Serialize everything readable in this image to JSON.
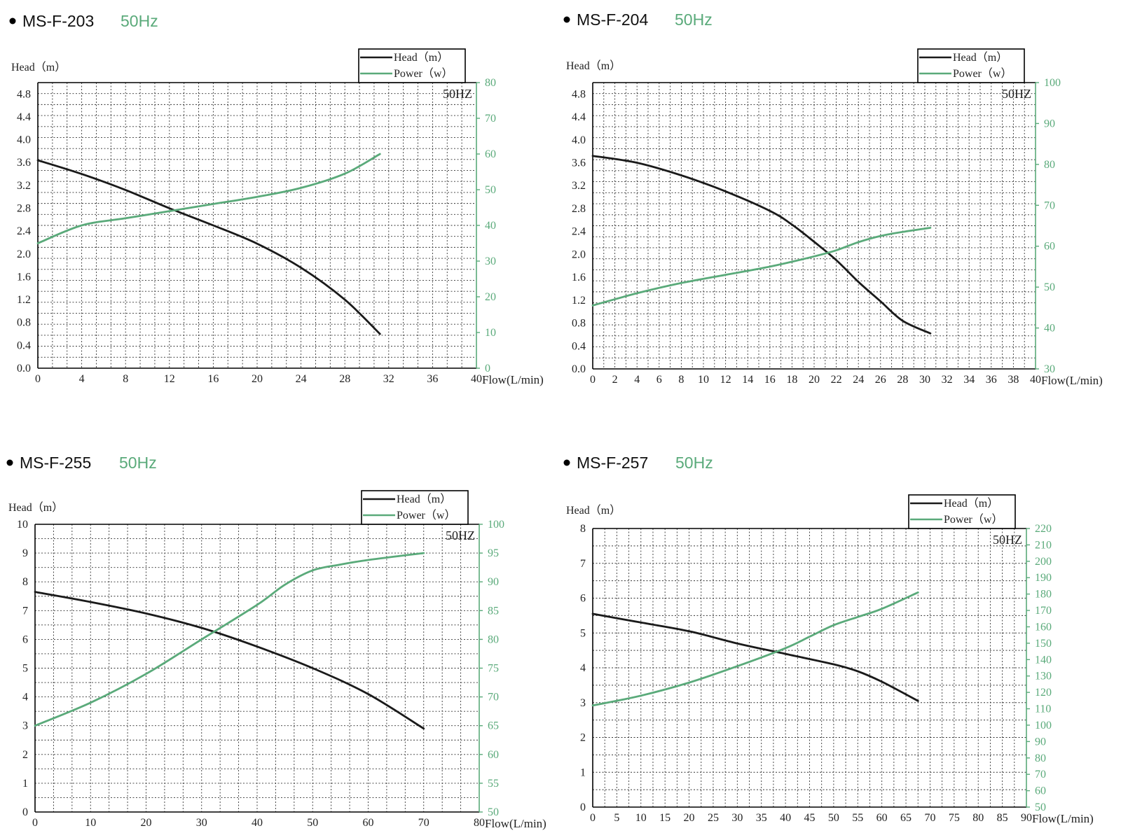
{
  "colors": {
    "head": "#1a1a1a",
    "power": "#5aaa7a",
    "hz_title": "#5aaa7a",
    "grid": "#333333",
    "text": "#222222"
  },
  "chart_data": [
    {
      "type": "line",
      "model": "MS-F-203",
      "hz": "50Hz",
      "inner_label": "50HZ",
      "ylabel": "Head（m）",
      "xlabel": "Flow(L/min)",
      "legend": [
        "Head（m）",
        "Power（w）"
      ],
      "legend_position": "top-right",
      "xlim": [
        0,
        40
      ],
      "x_ticks": [
        0,
        4,
        8,
        12,
        16,
        20,
        24,
        28,
        32,
        36,
        40
      ],
      "ylim": [
        0,
        5
      ],
      "y_ticks": [
        "0.0",
        "0.4",
        "0.8",
        "1.2",
        "1.6",
        "2.0",
        "2.4",
        "2.8",
        "3.2",
        "3.6",
        "4.0",
        "4.4",
        "4.8"
      ],
      "y2lim": [
        0,
        80
      ],
      "y2_ticks": [
        0,
        10,
        20,
        30,
        40,
        50,
        60,
        70,
        80
      ],
      "series": [
        {
          "name": "Head（m）",
          "axis": "left",
          "points": [
            [
              0,
              3.64
            ],
            [
              4,
              3.4
            ],
            [
              8,
              3.12
            ],
            [
              12,
              2.8
            ],
            [
              16,
              2.5
            ],
            [
              20,
              2.18
            ],
            [
              24,
              1.76
            ],
            [
              28,
              1.2
            ],
            [
              31.2,
              0.6
            ]
          ]
        },
        {
          "name": "Power（w）",
          "axis": "right",
          "points": [
            [
              0,
              35
            ],
            [
              4,
              40
            ],
            [
              8,
              42
            ],
            [
              12,
              44
            ],
            [
              16,
              46
            ],
            [
              20,
              48
            ],
            [
              24,
              50.5
            ],
            [
              28,
              54.5
            ],
            [
              31.2,
              60
            ]
          ]
        }
      ]
    },
    {
      "type": "line",
      "model": "MS-F-204",
      "hz": "50Hz",
      "inner_label": "50HZ",
      "ylabel": "Head（m）",
      "xlabel": "Flow(L/min)",
      "legend": [
        "Head（m）",
        "Power（w）"
      ],
      "legend_position": "top-right",
      "xlim": [
        0,
        40
      ],
      "x_ticks": [
        0,
        2,
        4,
        6,
        8,
        10,
        12,
        14,
        16,
        18,
        20,
        22,
        24,
        26,
        28,
        30,
        32,
        34,
        36,
        38,
        40
      ],
      "ylim": [
        0,
        5
      ],
      "y_ticks": [
        "0.0",
        "0.4",
        "0.8",
        "1.2",
        "1.6",
        "2.0",
        "2.4",
        "2.8",
        "3.2",
        "3.6",
        "4.0",
        "4.4",
        "4.8"
      ],
      "y2lim": [
        30,
        100
      ],
      "y2_ticks": [
        30,
        40,
        50,
        60,
        70,
        80,
        90,
        100
      ],
      "series": [
        {
          "name": "Head（m）",
          "axis": "left",
          "points": [
            [
              0,
              3.72
            ],
            [
              4,
              3.6
            ],
            [
              8,
              3.38
            ],
            [
              12,
              3.1
            ],
            [
              16,
              2.76
            ],
            [
              18,
              2.52
            ],
            [
              20,
              2.22
            ],
            [
              22,
              1.9
            ],
            [
              24,
              1.52
            ],
            [
              26,
              1.18
            ],
            [
              28,
              0.84
            ],
            [
              30.5,
              0.62
            ]
          ]
        },
        {
          "name": "Power（w）",
          "axis": "right",
          "points": [
            [
              0,
              45.5
            ],
            [
              4,
              48.5
            ],
            [
              8,
              51
            ],
            [
              12,
              53
            ],
            [
              16,
              55
            ],
            [
              20,
              57.5
            ],
            [
              22,
              59
            ],
            [
              24,
              61
            ],
            [
              26,
              62.5
            ],
            [
              28,
              63.5
            ],
            [
              30.5,
              64.5
            ]
          ]
        }
      ]
    },
    {
      "type": "line",
      "model": "MS-F-255",
      "hz": "50Hz",
      "inner_label": "50HZ",
      "ylabel": "Head（m）",
      "xlabel": "Flow(L/min)",
      "legend": [
        "Head（m）",
        "Power（w）"
      ],
      "legend_position": "top-right",
      "xlim": [
        0,
        80
      ],
      "x_ticks": [
        0,
        10,
        20,
        30,
        40,
        50,
        60,
        70,
        80
      ],
      "ylim": [
        0,
        10
      ],
      "y_ticks": [
        "0",
        "1",
        "2",
        "3",
        "4",
        "5",
        "6",
        "7",
        "8",
        "9",
        "10"
      ],
      "y2lim": [
        50,
        100
      ],
      "y2_ticks": [
        50,
        55,
        60,
        65,
        70,
        75,
        80,
        85,
        90,
        95,
        100
      ],
      "series": [
        {
          "name": "Head（m）",
          "axis": "left",
          "points": [
            [
              0,
              7.65
            ],
            [
              10,
              7.3
            ],
            [
              20,
              6.9
            ],
            [
              30,
              6.4
            ],
            [
              40,
              5.75
            ],
            [
              50,
              5.0
            ],
            [
              60,
              4.1
            ],
            [
              70,
              2.9
            ]
          ]
        },
        {
          "name": "Power（w）",
          "axis": "right",
          "points": [
            [
              0,
              65
            ],
            [
              10,
              69
            ],
            [
              20,
              74
            ],
            [
              30,
              80
            ],
            [
              40,
              86
            ],
            [
              45,
              89.5
            ],
            [
              50,
              92
            ],
            [
              55,
              93
            ],
            [
              60,
              93.8
            ],
            [
              70,
              95
            ]
          ]
        }
      ]
    },
    {
      "type": "line",
      "model": "MS-F-257",
      "hz": "50Hz",
      "inner_label": "50HZ",
      "ylabel": "Head（m）",
      "xlabel": "Flow(L/min)",
      "legend": [
        "Head（m）",
        "Power（w）"
      ],
      "legend_position": "top-right",
      "xlim": [
        0,
        90
      ],
      "x_ticks": [
        0,
        5,
        10,
        15,
        20,
        25,
        30,
        35,
        40,
        45,
        50,
        55,
        60,
        65,
        70,
        75,
        80,
        85,
        90
      ],
      "ylim": [
        0,
        8
      ],
      "y_ticks": [
        "0",
        "1",
        "2",
        "3",
        "4",
        "5",
        "6",
        "7",
        "8"
      ],
      "y2lim": [
        50,
        220
      ],
      "y2_ticks": [
        50,
        60,
        70,
        80,
        90,
        100,
        110,
        120,
        130,
        140,
        150,
        160,
        170,
        180,
        190,
        200,
        210,
        220
      ],
      "series": [
        {
          "name": "Head（m）",
          "axis": "left",
          "points": [
            [
              0,
              5.55
            ],
            [
              10,
              5.3
            ],
            [
              20,
              5.05
            ],
            [
              30,
              4.7
            ],
            [
              40,
              4.4
            ],
            [
              50,
              4.1
            ],
            [
              55,
              3.9
            ],
            [
              60,
              3.6
            ],
            [
              67.5,
              3.05
            ]
          ]
        },
        {
          "name": "Power（w）",
          "axis": "right",
          "points": [
            [
              0,
              112
            ],
            [
              10,
              118
            ],
            [
              20,
              126
            ],
            [
              30,
              136
            ],
            [
              40,
              147
            ],
            [
              45,
              154
            ],
            [
              50,
              161
            ],
            [
              55,
              166
            ],
            [
              60,
              171
            ],
            [
              67.5,
              181
            ]
          ]
        }
      ]
    }
  ]
}
